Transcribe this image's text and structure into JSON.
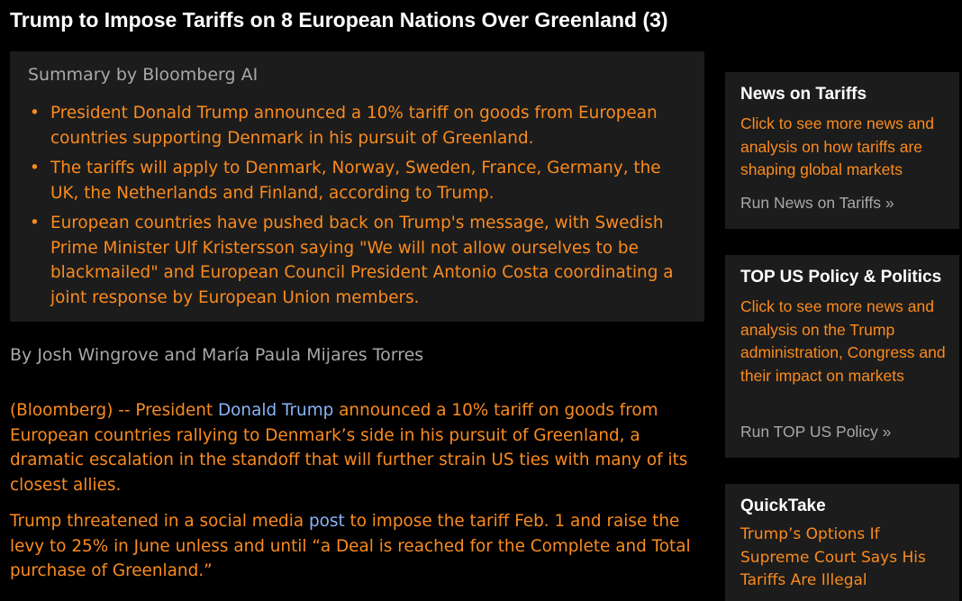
{
  "article": {
    "headline": "Trump to Impose Tariffs on 8 European Nations Over Greenland (3)",
    "summary": {
      "title": "Summary by Bloomberg AI",
      "bullets": [
        "President Donald Trump announced a 10% tariff on goods from European countries supporting Denmark in his pursuit of Greenland.",
        "The tariffs will apply to Denmark, Norway, Sweden, France, Germany, the UK, the Netherlands and Finland, according to Trump.",
        "European countries have pushed back on Trump's message, with Swedish Prime Minister Ulf Kristersson saying \"We will not allow ourselves to be blackmailed\" and European Council President Antonio Costa coordinating a joint response by European Union members."
      ]
    },
    "byline": "By Josh Wingrove and María Paula Mijares Torres",
    "paragraph1": {
      "prefix": "(Bloomberg) -- President ",
      "link": "Donald Trump",
      "suffix": " announced a 10% tariff on goods from European countries rallying to Denmark’s side in his pursuit of Greenland, a dramatic escalation in the standoff that will further strain US ties with many of its closest allies."
    },
    "paragraph2": {
      "prefix": "Trump threatened in a social media ",
      "link": "post",
      "suffix": " to impose the tariff Feb. 1 and raise the levy to 25% in June unless and until “a Deal is reached for the Complete and Total purchase of Greenland.”"
    }
  },
  "sidebar": {
    "cards": [
      {
        "title": "News on Tariffs",
        "body": "Click to see more news and analysis on how tariffs are shaping global markets",
        "link": "Run News on Tariffs »"
      },
      {
        "title": "TOP US Policy & Politics",
        "body": "Click to see more news and analysis on the Trump administration, Congress and their impact on markets",
        "link": "Run TOP US Policy »"
      },
      {
        "title": "QuickTake",
        "body": "Trump’s Options If Supreme Court Says His Tariffs Are Illegal"
      }
    ]
  },
  "colors": {
    "background": "#000000",
    "panel": "#1c1c1c",
    "accent_orange": "#fb8b1e",
    "link_blue": "#8ab4f8",
    "muted_gray": "#a8a8a8",
    "headline_white": "#ffffff"
  },
  "icons": {
    "bullet": "•"
  }
}
